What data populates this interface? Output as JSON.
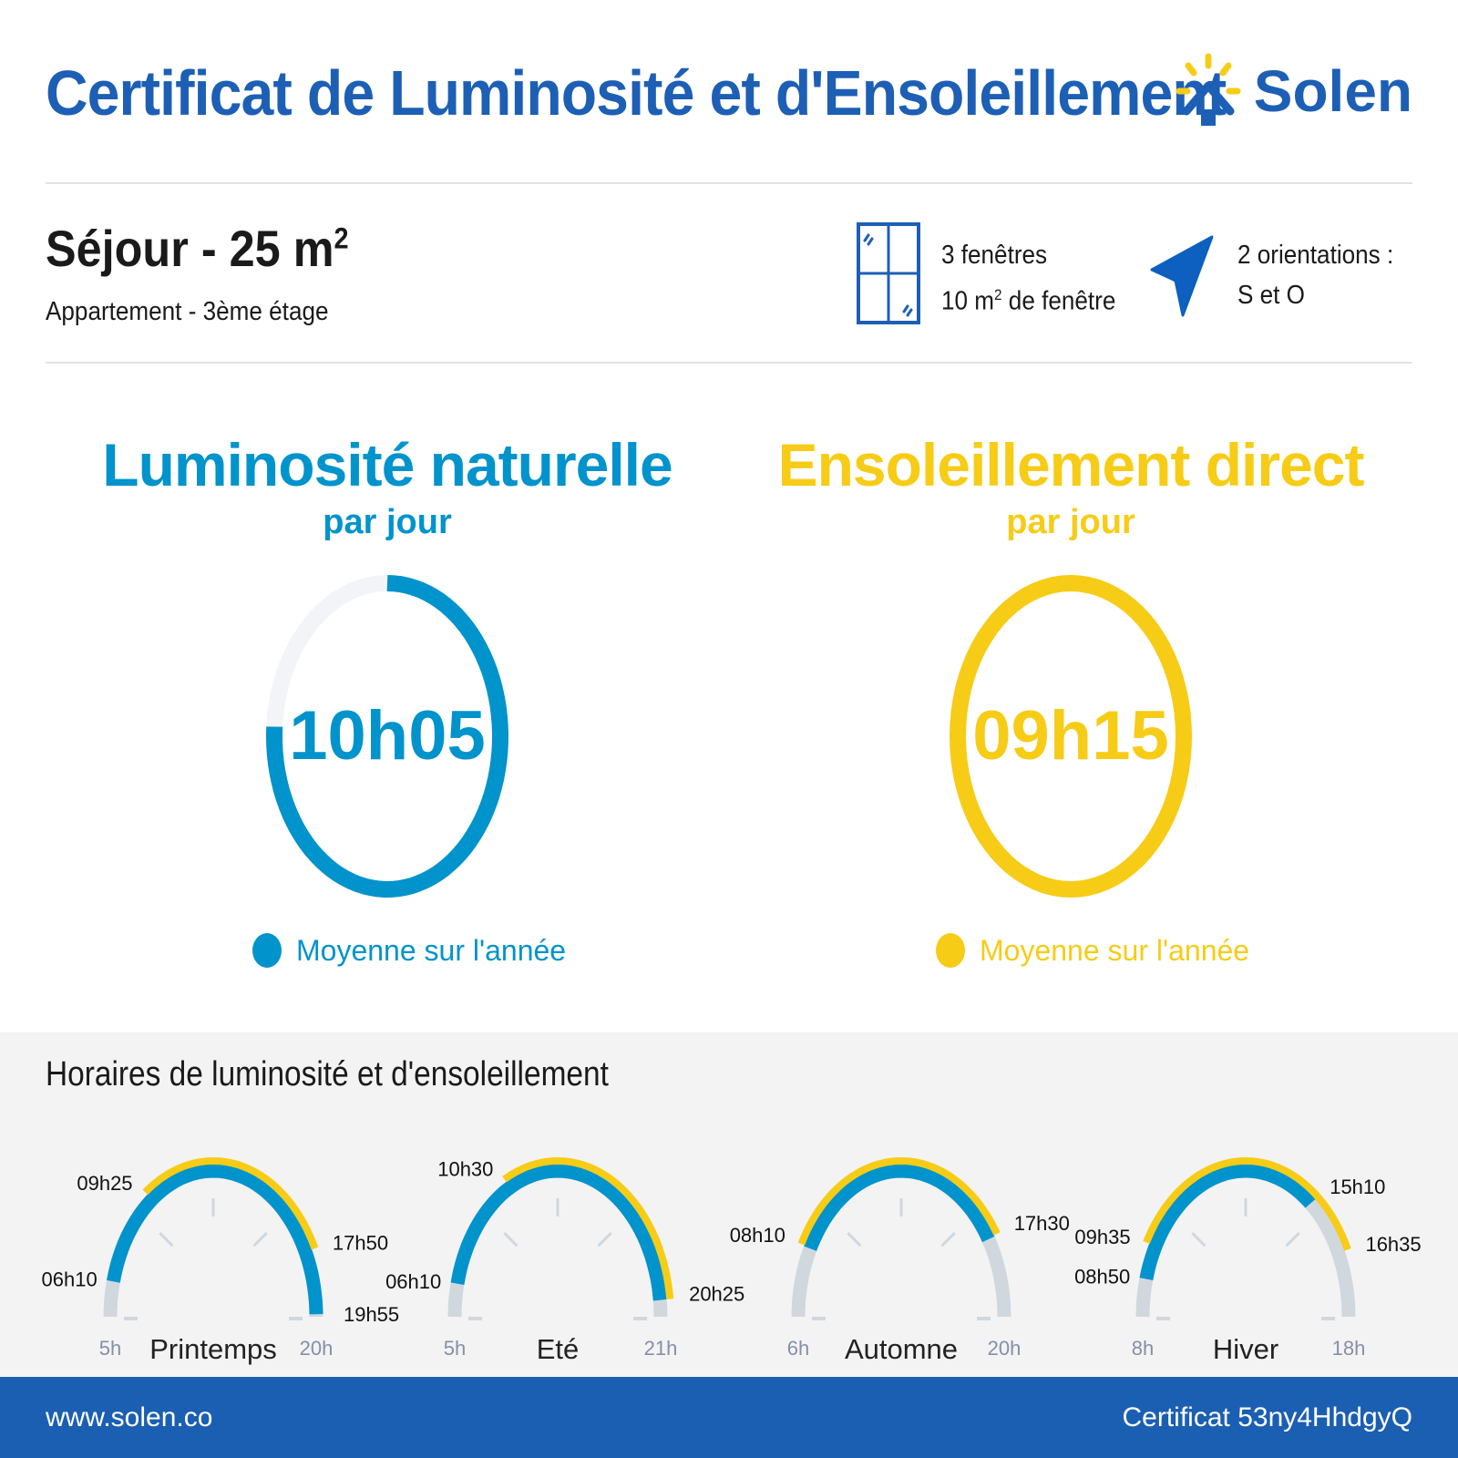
{
  "header": {
    "title": "Certificat de Luminosité et d'Ensoleillement",
    "logo_text": "Solen",
    "logo_icon": "sun-house-icon"
  },
  "room": {
    "name": "Séjour - 25 m",
    "name_sup": "2",
    "subtitle": "Appartement - 3ème étage"
  },
  "windows": {
    "icon": "window-icon",
    "line1": "3 fenêtres",
    "line2_pre": "10 m",
    "line2_sup": "2",
    "line2_post": " de fenêtre"
  },
  "orientation": {
    "icon": "navigation-arrow-icon",
    "line1": "2 orientations :",
    "line2": "S et O"
  },
  "colors": {
    "brand": "#1d5fb5",
    "light": "#0093cc",
    "sun": "#f7cc16",
    "track": "#d0d8de"
  },
  "luminosity": {
    "title": "Luminosité naturelle",
    "subtitle": "par jour",
    "value": "10h05",
    "fill": 0.76,
    "legend": "Moyenne sur l'année"
  },
  "sunshine": {
    "title": "Ensoleillement direct",
    "subtitle": "par jour",
    "value": "09h15",
    "fill": 1.0,
    "legend": "Moyenne sur l'année"
  },
  "schedule": {
    "title": "Horaires de luminosité et d'ensoleillement",
    "seasons": [
      {
        "name": "Printemps",
        "start_label": "5h",
        "end_label": "20h",
        "start": 5,
        "end": 20,
        "light_start": "06h10",
        "light_end": "19h55",
        "sun_start": "09h25",
        "sun_end": "17h50"
      },
      {
        "name": "Eté",
        "start_label": "5h",
        "end_label": "21h",
        "start": 5,
        "end": 21,
        "light_start": "06h10",
        "light_end": "20h25",
        "sun_start": "10h30",
        "sun_end": "20h25"
      },
      {
        "name": "Automne",
        "start_label": "6h",
        "end_label": "20h",
        "start": 6,
        "end": 20,
        "light_start": "08h10",
        "light_end": "17h30",
        "sun_start": "08h10",
        "sun_end": "17h30"
      },
      {
        "name": "Hiver",
        "start_label": "8h",
        "end_label": "18h",
        "start": 8,
        "end": 18,
        "light_start": "08h50",
        "light_end": "15h10",
        "sun_start": "09h35",
        "sun_end": "16h35"
      }
    ]
  },
  "footer": {
    "website": "www.solen.co",
    "certificate": "Certificat 53ny4HhdgyQ"
  }
}
